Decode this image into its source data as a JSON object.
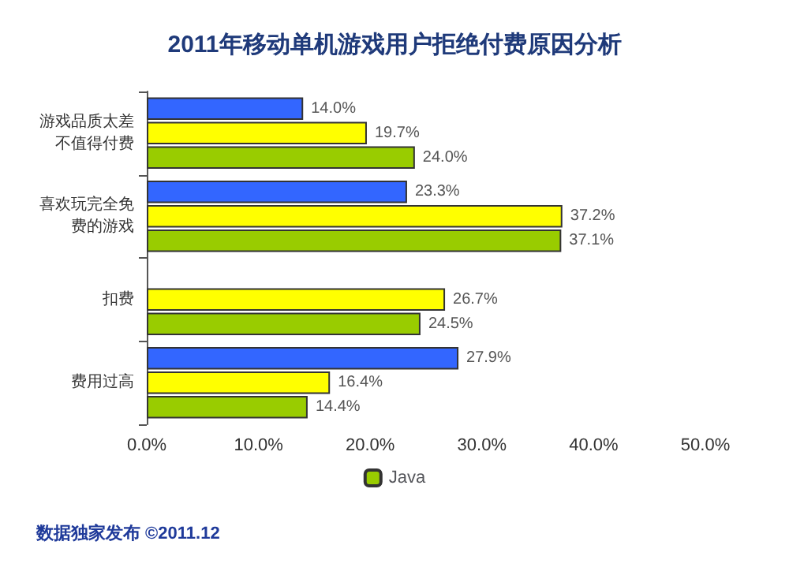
{
  "chart_data": {
    "type": "bar",
    "orientation": "horizontal",
    "title": "2011年移动单机游戏用户拒绝付费原因分析",
    "categories": [
      "游戏品质太差不值得付费",
      "喜欢玩完全免费的游戏",
      "扣费",
      "费用过高"
    ],
    "series": [
      {
        "color": "#3366ff",
        "values": [
          14.0,
          23.3,
          null,
          27.9
        ],
        "value_labels": [
          "14.0%",
          "23.3%",
          null,
          "27.9%"
        ]
      },
      {
        "color": "#ffff00",
        "values": [
          19.7,
          37.2,
          26.7,
          16.4
        ],
        "value_labels": [
          "19.7%",
          "37.2%",
          "26.7%",
          "16.4%"
        ]
      },
      {
        "name": "Java",
        "color": "#99cc00",
        "values": [
          24.0,
          37.1,
          24.5,
          14.4
        ],
        "value_labels": [
          "24.0%",
          "37.1%",
          "24.5%",
          "14.4%"
        ]
      }
    ],
    "xlim": [
      0,
      50
    ],
    "xticks": [
      {
        "value": 0,
        "label": "0.0%"
      },
      {
        "value": 10,
        "label": "10.0%"
      },
      {
        "value": 20,
        "label": "20.0%"
      },
      {
        "value": 30,
        "label": "30.0%"
      },
      {
        "value": 40,
        "label": "40.0%"
      },
      {
        "value": 50,
        "label": "50.0%"
      }
    ],
    "grid": false,
    "legend": "bottom",
    "annotations": [
      "数据独家发布 ©2011.12"
    ]
  }
}
